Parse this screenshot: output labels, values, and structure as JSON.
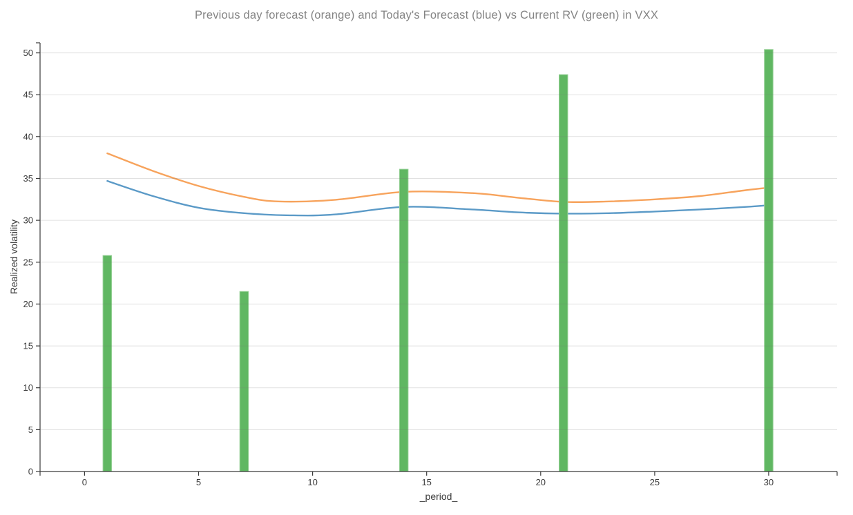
{
  "window": {
    "background": "#ffffff"
  },
  "chart_data": {
    "type": "mixed_bar_line",
    "title": "Previous day forecast (orange) and Today's Forecast (blue) vs Current RV (green) in VXX",
    "xlabel": "_period_",
    "ylabel": "Realized volatility",
    "xlim": [
      -1.95,
      33.0
    ],
    "ylim": [
      0,
      51.2
    ],
    "x_ticks": [
      0,
      5,
      10,
      15,
      20,
      25,
      30
    ],
    "y_ticks": [
      0,
      5,
      10,
      15,
      20,
      25,
      30,
      35,
      40,
      45,
      50
    ],
    "grid": {
      "horizontal": true,
      "vertical": false,
      "color": "#787878",
      "opacity": 0.22
    },
    "legend": "none",
    "axis_color": "#3a3a3a",
    "tick_label_color": "#3a3a3a",
    "title_color": "#848484",
    "label_color": "#3a3a3a",
    "bars": {
      "name": "Current RV",
      "color": "#60b762",
      "edge_color": "#97d197",
      "x": [
        1,
        7,
        14,
        21,
        30
      ],
      "values": [
        25.8,
        21.5,
        36.1,
        47.4,
        50.4
      ],
      "bar_width": 0.38
    },
    "series": [
      {
        "name": "Previous day forecast",
        "type": "line",
        "color": "#f7a35c",
        "x": [
          1,
          3,
          5,
          7,
          8.5,
          11,
          14,
          17,
          19,
          21,
          23,
          25,
          27,
          29,
          30
        ],
        "values": [
          38.0,
          35.9,
          34.1,
          32.8,
          32.25,
          32.45,
          33.4,
          33.25,
          32.7,
          32.2,
          32.25,
          32.5,
          32.9,
          33.6,
          33.9
        ]
      },
      {
        "name": "Today's Forecast",
        "type": "line",
        "color": "#5b9ac7",
        "x": [
          1,
          3,
          5,
          7,
          9,
          11,
          14,
          17,
          19,
          21,
          23,
          25,
          27,
          29,
          30
        ],
        "values": [
          34.7,
          32.9,
          31.5,
          30.85,
          30.6,
          30.7,
          31.6,
          31.3,
          30.95,
          30.8,
          30.85,
          31.05,
          31.3,
          31.6,
          31.8
        ]
      }
    ]
  }
}
